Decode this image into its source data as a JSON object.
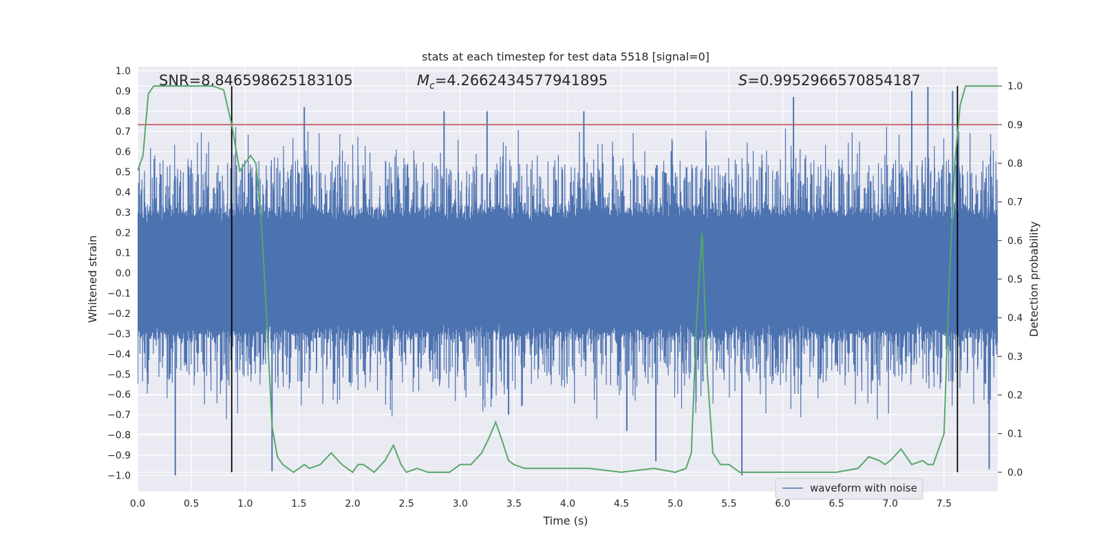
{
  "chart_data": {
    "type": "line",
    "title": "stats at each timestep for test data 5518 [signal=0]",
    "xlabel": "Time (s)",
    "ylabel_left": "Whitened strain",
    "ylabel_right": "Detection probability",
    "xlim": [
      0.0,
      8.0
    ],
    "ylim_left": [
      -1.08,
      1.02
    ],
    "ylim_right": [
      -0.05,
      1.05
    ],
    "x_ticks": [
      "0.0",
      "0.5",
      "1.0",
      "1.5",
      "2.0",
      "2.5",
      "3.0",
      "3.5",
      "4.0",
      "4.5",
      "5.0",
      "5.5",
      "6.0",
      "6.5",
      "7.0",
      "7.5"
    ],
    "y_ticks_left": [
      "1.0",
      "0.9",
      "0.8",
      "0.7",
      "0.6",
      "0.5",
      "0.4",
      "0.3",
      "0.2",
      "0.1",
      "0.0",
      "−0.1",
      "−0.2",
      "−0.3",
      "−0.4",
      "−0.5",
      "−0.6",
      "−0.7",
      "−0.8",
      "−0.9",
      "−1.0"
    ],
    "y_ticks_right": [
      "1.0",
      "0.9",
      "0.8",
      "0.7",
      "0.6",
      "0.5",
      "0.4",
      "0.3",
      "0.2",
      "0.1",
      "0.0"
    ],
    "grid": true,
    "annotations": {
      "snr": "SNR=8.846598625183105",
      "mc_symbol": "M",
      "mc_sub": "c",
      "mc_value": "=4.2662434577941895",
      "s_symbol": "S",
      "s_value": "=0.9952966570854187"
    },
    "threshold_probability": 0.9,
    "vertical_lines_time": [
      0.875,
      7.625
    ],
    "legend": {
      "entries": [
        "waveform with noise"
      ],
      "placement": "lower-right"
    },
    "waveform": {
      "name": "waveform with noise",
      "color": "#4c72b0",
      "time_range": [
        0.0,
        8.0
      ],
      "core_amplitude": 0.27,
      "typical_peak": 0.5,
      "spikes": [
        {
          "t": 0.35,
          "y": -1.0
        },
        {
          "t": 1.25,
          "y": -0.98
        },
        {
          "t": 1.55,
          "y": 0.82
        },
        {
          "t": 2.85,
          "y": 0.8
        },
        {
          "t": 3.25,
          "y": 0.8
        },
        {
          "t": 4.15,
          "y": 0.8
        },
        {
          "t": 4.82,
          "y": -0.93
        },
        {
          "t": 5.62,
          "y": -1.0
        },
        {
          "t": 6.1,
          "y": 0.87
        },
        {
          "t": 7.2,
          "y": 0.9
        },
        {
          "t": 7.35,
          "y": 0.92
        },
        {
          "t": 7.58,
          "y": 0.9
        },
        {
          "t": 7.92,
          "y": -0.97
        },
        {
          "t": 4.55,
          "y": -0.78
        },
        {
          "t": 3.45,
          "y": -0.7
        }
      ]
    },
    "detection_probability": {
      "color": "#55a868",
      "x": [
        0.0,
        0.05,
        0.1,
        0.15,
        0.3,
        0.5,
        0.7,
        0.8,
        0.875,
        0.95,
        1.0,
        1.05,
        1.1,
        1.15,
        1.2,
        1.25,
        1.3,
        1.35,
        1.4,
        1.45,
        1.5,
        1.55,
        1.6,
        1.7,
        1.8,
        1.9,
        2.0,
        2.05,
        2.1,
        2.2,
        2.3,
        2.38,
        2.45,
        2.5,
        2.6,
        2.7,
        2.9,
        3.0,
        3.1,
        3.2,
        3.27,
        3.33,
        3.38,
        3.45,
        3.5,
        3.6,
        3.8,
        4.0,
        4.2,
        4.5,
        4.8,
        5.0,
        5.1,
        5.15,
        5.2,
        5.25,
        5.3,
        5.35,
        5.42,
        5.5,
        5.6,
        5.7,
        5.8,
        6.0,
        6.2,
        6.5,
        6.7,
        6.8,
        6.9,
        6.95,
        7.0,
        7.1,
        7.15,
        7.2,
        7.3,
        7.35,
        7.4,
        7.5,
        7.55,
        7.6,
        7.65,
        7.7,
        7.8,
        7.9,
        8.0
      ],
      "y": [
        0.78,
        0.82,
        0.98,
        1.0,
        1.0,
        1.0,
        1.0,
        0.99,
        0.9,
        0.78,
        0.8,
        0.82,
        0.8,
        0.65,
        0.4,
        0.12,
        0.04,
        0.02,
        0.01,
        0.0,
        0.01,
        0.02,
        0.01,
        0.02,
        0.05,
        0.02,
        0.0,
        0.02,
        0.02,
        0.0,
        0.03,
        0.07,
        0.02,
        0.0,
        0.01,
        0.0,
        0.0,
        0.02,
        0.02,
        0.05,
        0.09,
        0.13,
        0.09,
        0.03,
        0.02,
        0.01,
        0.01,
        0.01,
        0.01,
        0.0,
        0.01,
        0.0,
        0.01,
        0.05,
        0.4,
        0.62,
        0.25,
        0.05,
        0.02,
        0.02,
        0.0,
        0.0,
        0.0,
        0.0,
        0.0,
        0.0,
        0.01,
        0.04,
        0.03,
        0.02,
        0.03,
        0.06,
        0.04,
        0.02,
        0.03,
        0.02,
        0.02,
        0.1,
        0.5,
        0.8,
        0.95,
        1.0,
        1.0,
        1.0,
        1.0
      ]
    }
  }
}
